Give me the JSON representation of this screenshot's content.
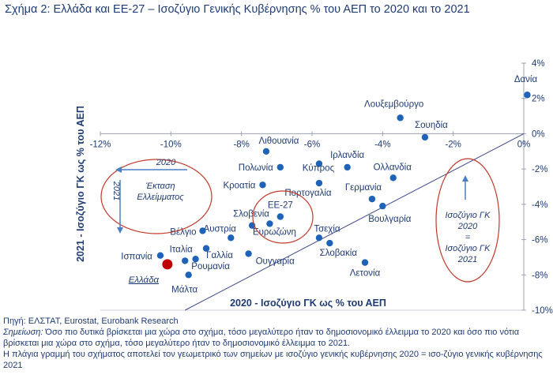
{
  "title": "Σχήμα 2: Ελλάδα και ΕΕ-27 – Ισοζύγιο Γενικής Κυβέρνησης % του ΑΕΠ το 2020 και το 2021",
  "footer": {
    "source": "Πηγή: ΕΛΣΤΑΤ, Eurostat, Eurobank Research",
    "note_label": "Σημείωση:",
    "note_1": " Όσο πιο δυτικά βρίσκεται μια χώρα στο σχήμα, τόσο μεγαλύτερο ήταν το δημοσιονομικό έλλειμμα το 2020 και όσο πιο νότια βρίσκεται μια χώρα στο σχήμα, τόσο μεγαλύτερο ήταν το δημοσιονομικό έλλειμμα το 2021.",
    "note_2": "Η πλάγια γραμμή του σχήματος αποτελεί τον γεωμετρικό των σημείων με ισοζύγιο γενικής κυβέρνησης 2020 = ισο-ζύγιο γενικής κυβέρνησης 2021"
  },
  "annotations": {
    "left_box": {
      "top_text": "2020",
      "side_text": "2021",
      "center_line1": "Έκταση",
      "center_line2": "Ελλείμματος"
    },
    "right_box": {
      "line1": "Ισοζύγιο ΓΚ",
      "line2": "2020",
      "line3": "=",
      "line4": "Ισοζύγιο ΓΚ",
      "line5": "2021"
    }
  },
  "colors": {
    "point": "#1f63b8",
    "greece": "#c00000",
    "text": "#1f3b73",
    "ellipse": "#c0392b",
    "diagonal": "#3b4a8a"
  },
  "chart_data": {
    "type": "scatter",
    "xlabel": "2020 - Ισοζύγιο ΓΚ ως % του ΑΕΠ",
    "ylabel": "2021 - Ισοζύγιο ΓΚ ως % του ΑΕΠ",
    "xlim": [
      -12,
      0
    ],
    "ylim": [
      -10,
      4
    ],
    "x_ticks": [
      -12,
      -10,
      -8,
      -6,
      -4,
      -2,
      0
    ],
    "x_tick_labels": [
      "-12%",
      "-10%",
      "-8%",
      "-6%",
      "-4%",
      "-2%",
      "0%"
    ],
    "y_ticks": [
      4,
      2,
      0,
      -2,
      -4,
      -6,
      -8,
      -10
    ],
    "y_tick_labels": [
      "4%",
      "2%",
      "0%",
      "-2%",
      "-4%",
      "-6%",
      "-8%",
      "-10%"
    ],
    "diagonal": "y = x",
    "points": [
      {
        "label": "Δανία",
        "x": 0.1,
        "y": 2.2
      },
      {
        "label": "Λουξεμβούργο",
        "x": -3.5,
        "y": 0.9
      },
      {
        "label": "Σουηδία",
        "x": -2.8,
        "y": -0.2
      },
      {
        "label": "Λιθουανία",
        "x": -7.3,
        "y": -1.0
      },
      {
        "label": "Ιρλανδία",
        "x": -5.0,
        "y": -1.9
      },
      {
        "label": "Πολωνία",
        "x": -6.9,
        "y": -1.9
      },
      {
        "label": "Κύπρος",
        "x": -5.8,
        "y": -1.7
      },
      {
        "label": "Ολλανδία",
        "x": -3.7,
        "y": -2.5
      },
      {
        "label": "Πορτογαλία",
        "x": -5.8,
        "y": -2.8
      },
      {
        "label": "Κροατία",
        "x": -7.4,
        "y": -2.9
      },
      {
        "label": "Γερμανία",
        "x": -4.3,
        "y": -3.7
      },
      {
        "label": "Βουλγαρία",
        "x": -4.0,
        "y": -4.1
      },
      {
        "label": "ΕΕ-27",
        "x": -6.9,
        "y": -4.7
      },
      {
        "label": "Σλοβενία",
        "x": -7.7,
        "y": -5.2
      },
      {
        "label": "Ευρωζώνη",
        "x": -7.2,
        "y": -5.1
      },
      {
        "label": "Αυστρία",
        "x": -8.3,
        "y": -5.9
      },
      {
        "label": "Βέλγιο",
        "x": -9.1,
        "y": -5.5
      },
      {
        "label": "Τσεχία",
        "x": -5.8,
        "y": -5.9
      },
      {
        "label": "Σλοβακία",
        "x": -5.5,
        "y": -6.2
      },
      {
        "label": "Ιταλία",
        "x": -9.6,
        "y": -7.2
      },
      {
        "label": "Ισπανία",
        "x": -10.3,
        "y": -6.9
      },
      {
        "label": "Γαλλία",
        "x": -9.0,
        "y": -6.5
      },
      {
        "label": "Ουγγαρία",
        "x": -7.8,
        "y": -6.8
      },
      {
        "label": "Ρουμανία",
        "x": -9.3,
        "y": -7.1
      },
      {
        "label": "Λετονία",
        "x": -4.5,
        "y": -7.3
      },
      {
        "label": "Ελλάδα",
        "x": -10.1,
        "y": -7.4,
        "highlight": true
      },
      {
        "label": "Μάλτα",
        "x": -9.5,
        "y": -8.0
      }
    ]
  }
}
